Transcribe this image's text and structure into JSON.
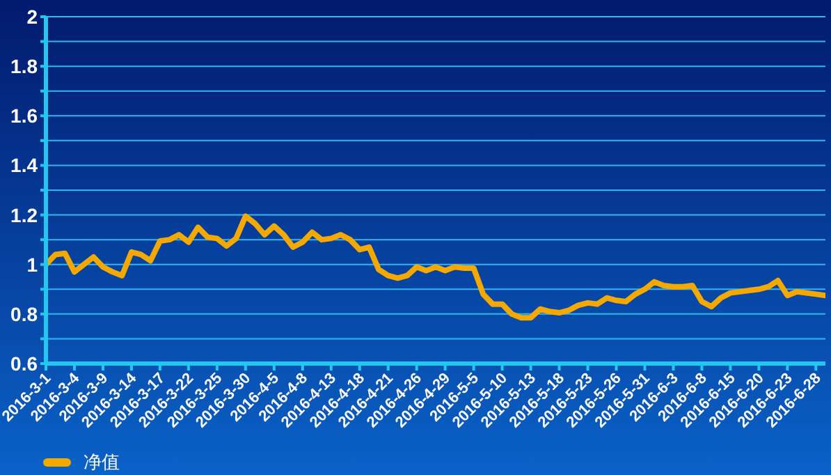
{
  "chart_data": {
    "type": "line",
    "categories": [
      "2016-3-1",
      null,
      null,
      "2016-3-4",
      null,
      null,
      "2016-3-9",
      null,
      null,
      "2016-3-14",
      null,
      null,
      "2016-3-17",
      null,
      null,
      "2016-3-22",
      null,
      null,
      "2016-3-25",
      null,
      null,
      "2016-3-30",
      null,
      null,
      "2016-4-5",
      null,
      null,
      "2016-4-8",
      null,
      null,
      "2016-4-13",
      null,
      null,
      "2016-4-18",
      null,
      null,
      "2016-4-21",
      null,
      null,
      "2016-4-26",
      null,
      null,
      "2016-4-29",
      null,
      null,
      "2016-5-5",
      null,
      null,
      "2016-5-10",
      null,
      null,
      "2016-5-13",
      null,
      null,
      "2016-5-18",
      null,
      null,
      "2016-5-23",
      null,
      null,
      "2016-5-26",
      null,
      null,
      "2016-5-31",
      null,
      null,
      "2016-6-3",
      null,
      null,
      "2016-6-8",
      null,
      null,
      "2016-6-15",
      null,
      null,
      "2016-6-20",
      null,
      null,
      "2016-6-23",
      null,
      null,
      "2016-6-28",
      null
    ],
    "series": [
      {
        "name": "净值",
        "color": "#f5a800",
        "values": [
          1.0,
          1.04,
          1.045,
          0.97,
          1.0,
          1.03,
          0.99,
          0.97,
          0.955,
          1.05,
          1.04,
          1.015,
          1.095,
          1.1,
          1.12,
          1.09,
          1.15,
          1.11,
          1.105,
          1.075,
          1.105,
          1.195,
          1.165,
          1.12,
          1.155,
          1.12,
          1.07,
          1.09,
          1.13,
          1.1,
          1.105,
          1.12,
          1.1,
          1.06,
          1.07,
          0.98,
          0.955,
          0.945,
          0.955,
          0.99,
          0.975,
          0.99,
          0.975,
          0.99,
          0.985,
          0.985,
          0.88,
          0.84,
          0.84,
          0.8,
          0.785,
          0.785,
          0.82,
          0.81,
          0.805,
          0.815,
          0.835,
          0.845,
          0.84,
          0.865,
          0.855,
          0.85,
          0.88,
          0.9,
          0.93,
          0.915,
          0.91,
          0.91,
          0.915,
          0.85,
          0.83,
          0.865,
          0.885,
          0.89,
          0.895,
          0.9,
          0.91,
          0.935,
          0.875,
          0.89,
          0.885,
          0.88,
          0.875
        ]
      }
    ],
    "ylim": [
      0.6,
      2
    ],
    "yticks": [
      0.6,
      {
        "value": 0.7,
        "label": null
      },
      0.8,
      {
        "value": 0.9,
        "label": null
      },
      1,
      {
        "value": 1.1,
        "label": null
      },
      1.2,
      {
        "value": 1.3,
        "label": null
      },
      1.4,
      {
        "value": 1.5,
        "label": null
      },
      1.6,
      {
        "value": 1.7,
        "label": null
      },
      1.8,
      {
        "value": 1.9,
        "label": null
      },
      2
    ],
    "grid": "y",
    "legend": "bottom left",
    "marker": "none",
    "line_style": "solid"
  }
}
